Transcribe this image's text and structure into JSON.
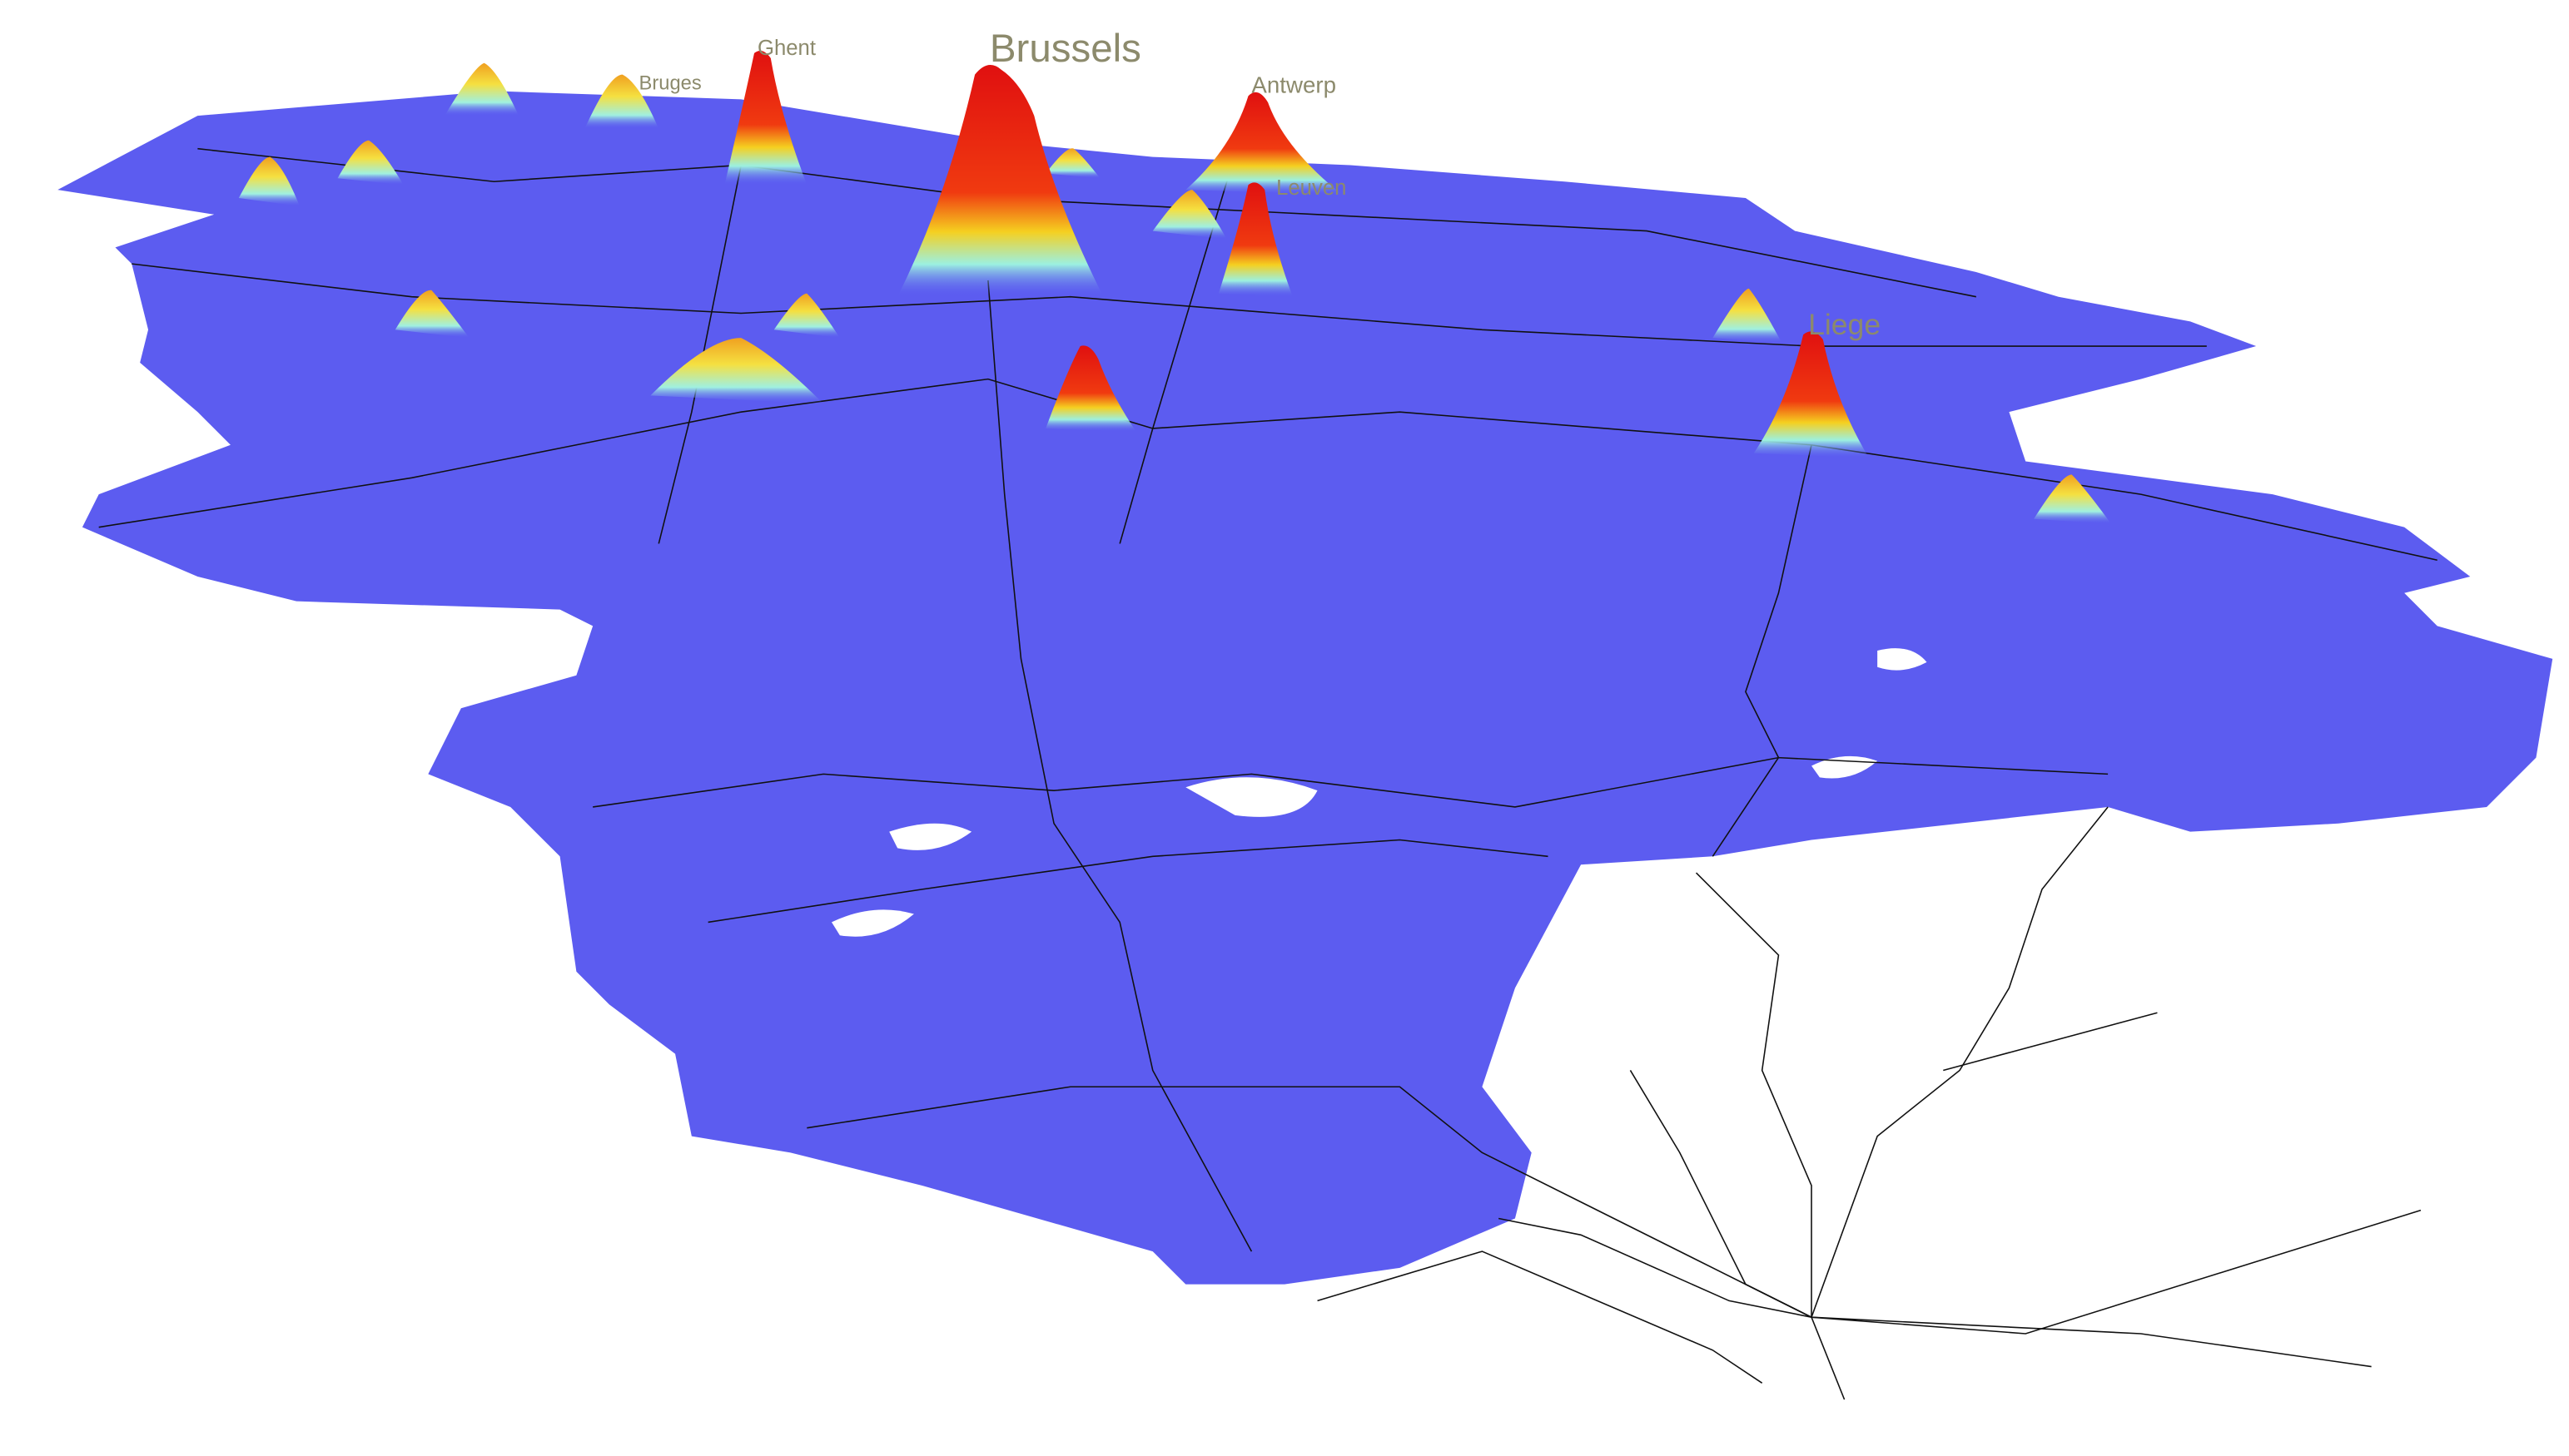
{
  "labels": [
    {
      "text": "Brussels"
    },
    {
      "text": "Ghent"
    },
    {
      "text": "Bruges"
    },
    {
      "text": "Antwerp"
    },
    {
      "text": "Leuven"
    },
    {
      "text": "Liege"
    }
  ]
}
